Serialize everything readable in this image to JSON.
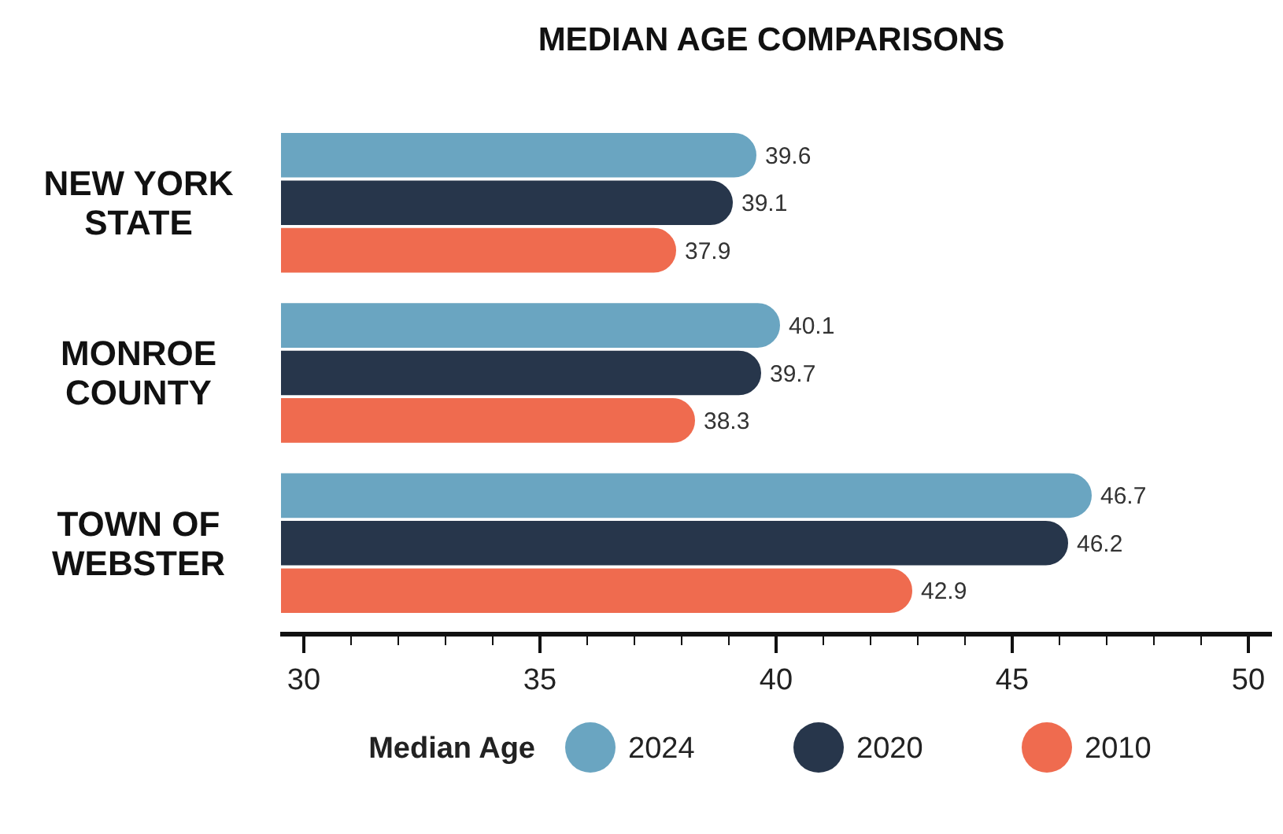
{
  "chart_data": {
    "type": "bar",
    "orientation": "horizontal",
    "title": "MEDIAN AGE COMPARISONS",
    "legend_title": "Median Age",
    "legend": "bottom",
    "data_labels": true,
    "categories": [
      "NEW YORK\nSTATE",
      "MONROE\nCOUNTY",
      "TOWN OF\nWEBSTER"
    ],
    "series": [
      {
        "name": "2024",
        "color": "#6aa5c1",
        "values": [
          39.6,
          40.1,
          46.7
        ]
      },
      {
        "name": "2020",
        "color": "#27364b",
        "values": [
          39.1,
          39.7,
          46.2
        ]
      },
      {
        "name": "2010",
        "color": "#ef6b4f",
        "values": [
          37.9,
          38.3,
          42.9
        ]
      }
    ],
    "xlim": [
      29.5,
      50.5
    ],
    "xticks": [
      30,
      {
        "value": 31,
        "label": null
      },
      {
        "value": 32,
        "label": null
      },
      {
        "value": 33,
        "label": null
      },
      {
        "value": 34,
        "label": null
      },
      35,
      {
        "value": 36,
        "label": null
      },
      {
        "value": 37,
        "label": null
      },
      {
        "value": 38,
        "label": null
      },
      {
        "value": 39,
        "label": null
      },
      40,
      {
        "value": 41,
        "label": null
      },
      {
        "value": 42,
        "label": null
      },
      {
        "value": 43,
        "label": null
      },
      {
        "value": 44,
        "label": null
      },
      45,
      {
        "value": 46,
        "label": null
      },
      {
        "value": 47,
        "label": null
      },
      {
        "value": 48,
        "label": null
      },
      {
        "value": 49,
        "label": null
      },
      50
    ]
  }
}
